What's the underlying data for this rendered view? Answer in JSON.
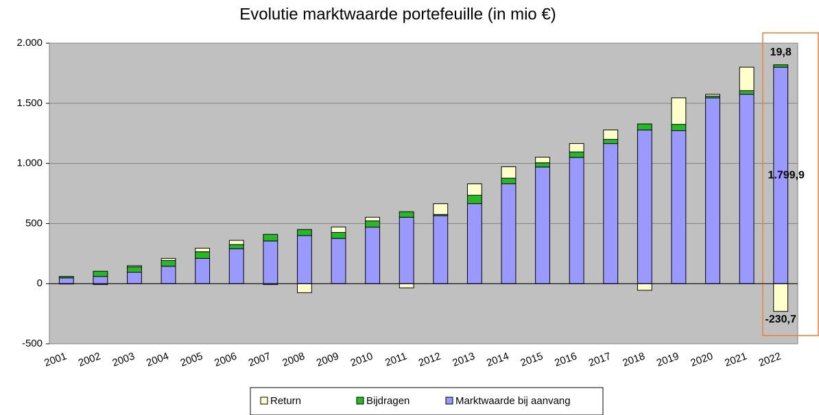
{
  "chart_data": {
    "type": "stacked-bar",
    "title": "Evolutie marktwaarde portefeuille (in mio €)",
    "categories": [
      "2001",
      "2002",
      "2003",
      "2004",
      "2005",
      "2006",
      "2007",
      "2008",
      "2009",
      "2010",
      "2011",
      "2012",
      "2013",
      "2014",
      "2015",
      "2016",
      "2017",
      "2018",
      "2019",
      "2020",
      "2021",
      "2022"
    ],
    "series": [
      {
        "name": "Marktwaarde bij aanvang",
        "color": "#9999ff",
        "values": [
          48,
          60,
          95,
          145,
          210,
          290,
          355,
          400,
          376,
          470,
          552,
          565,
          665,
          830,
          970,
          1050,
          1165,
          1278,
          1273,
          1545,
          1575,
          1799.9
        ],
        "value_labels": [
          null,
          null,
          null,
          null,
          null,
          null,
          null,
          null,
          null,
          null,
          null,
          null,
          null,
          null,
          null,
          null,
          null,
          null,
          null,
          null,
          null,
          "1.799,9"
        ]
      },
      {
        "name": "Bijdragen",
        "color": "#22bb22",
        "values": [
          12,
          43,
          45,
          48,
          55,
          35,
          55,
          50,
          50,
          52,
          46,
          10,
          70,
          47,
          35,
          45,
          35,
          50,
          52,
          15,
          30,
          19.8
        ],
        "value_labels": [
          null,
          null,
          null,
          null,
          null,
          null,
          null,
          null,
          null,
          null,
          null,
          null,
          null,
          null,
          null,
          null,
          null,
          null,
          null,
          null,
          null,
          "19,8"
        ]
      },
      {
        "name": "Return",
        "color": "#ffffcc",
        "values": [
          -3,
          -8,
          10,
          17,
          30,
          35,
          -8,
          -75,
          45,
          30,
          -35,
          90,
          95,
          95,
          47,
          70,
          78,
          -55,
          220,
          15,
          195,
          -230.7
        ],
        "value_labels": [
          null,
          null,
          null,
          null,
          null,
          null,
          null,
          null,
          null,
          null,
          null,
          null,
          null,
          null,
          null,
          null,
          null,
          null,
          null,
          null,
          null,
          "-230,7"
        ]
      }
    ],
    "ylim": [
      -500,
      2000
    ],
    "yticks": [
      -500,
      0,
      500,
      {
        "value": 1000,
        "label": "1.000"
      },
      {
        "value": 1500,
        "label": "1.500"
      },
      {
        "value": 2000,
        "label": "2.000"
      }
    ],
    "grid": true,
    "legend": "bottom"
  }
}
